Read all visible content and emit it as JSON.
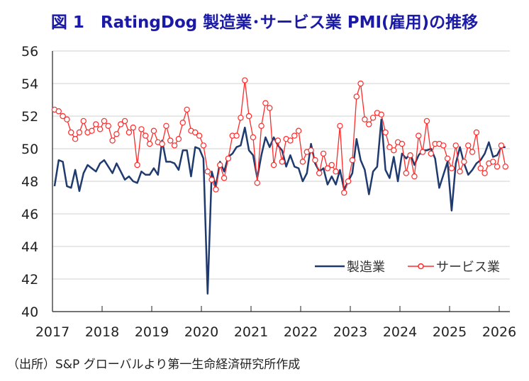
{
  "title": "図 1　RatingDog 製造業･サービス業 PMI(雇用)の推移",
  "source": "（出所）S&P グローバルより第一生命経済研究所作成",
  "chart_data": {
    "type": "line",
    "title": "図 1　RatingDog 製造業･サービス業 PMI(雇用)の推移",
    "xlabel": "",
    "ylabel": "",
    "ylim": [
      40,
      56
    ],
    "yticks": [
      "40",
      "42",
      "44",
      "46",
      "48",
      "50",
      "52",
      "54",
      "56"
    ],
    "xlim": [
      2017,
      2026.2
    ],
    "xticks": [
      "2017",
      "2018",
      "2019",
      "2020",
      "2021",
      "2022",
      "2023",
      "2024",
      "2025",
      "2026"
    ],
    "grid": "horizontal",
    "legend_position": "bottom-right",
    "x_start": "2017-01",
    "x_frequency": "monthly",
    "series": [
      {
        "name": "製造業",
        "color": "#1f3a6e",
        "marker": "none",
        "values": [
          47.7,
          49.3,
          49.2,
          47.7,
          47.6,
          48.7,
          47.4,
          48.5,
          49.0,
          48.8,
          48.6,
          49.1,
          49.3,
          48.9,
          48.5,
          49.1,
          48.6,
          48.1,
          48.3,
          48.0,
          47.9,
          48.6,
          48.4,
          48.4,
          48.8,
          48.4,
          50.5,
          49.2,
          49.2,
          49.1,
          48.7,
          49.9,
          49.9,
          48.3,
          50.1,
          50.0,
          49.4,
          41.1,
          48.6,
          47.7,
          49.2,
          48.6,
          49.5,
          49.7,
          50.1,
          50.2,
          51.3,
          49.9,
          49.6,
          48.2,
          49.6,
          50.7,
          50.1,
          50.7,
          50.2,
          49.9,
          48.9,
          49.6,
          48.9,
          48.8,
          48.0,
          48.5,
          50.3,
          49.1,
          48.6,
          48.8,
          47.8,
          48.3,
          47.8,
          48.7,
          47.5,
          48.0,
          48.5,
          50.6,
          49.3,
          48.7,
          47.2,
          48.6,
          48.9,
          51.8,
          48.7,
          48.2,
          49.5,
          48.0,
          49.7,
          49.4,
          49.7,
          49.0,
          49.6,
          49.9,
          49.9,
          50.0,
          49.4,
          47.6,
          48.4,
          49.2,
          46.2,
          49.1,
          50.1,
          49.1,
          48.4,
          48.7,
          49.1,
          49.3,
          49.7,
          50.4,
          49.5,
          49.6,
          50.1,
          50.1
        ]
      },
      {
        "name": "サービス業",
        "color": "#ff2a2a",
        "marker": "circle",
        "values": [
          52.4,
          52.3,
          52.0,
          51.8,
          51.0,
          50.6,
          51.0,
          51.7,
          51.0,
          51.1,
          51.5,
          51.2,
          51.7,
          51.4,
          50.5,
          50.9,
          51.5,
          51.7,
          51.0,
          51.3,
          49.0,
          51.2,
          50.8,
          50.3,
          51.1,
          50.4,
          50.3,
          51.4,
          50.5,
          50.2,
          50.6,
          51.6,
          52.4,
          51.1,
          51.0,
          50.8,
          50.2,
          48.6,
          48.1,
          47.5,
          49.0,
          48.2,
          49.4,
          50.8,
          50.8,
          51.9,
          54.2,
          52.0,
          50.7,
          47.9,
          51.4,
          52.8,
          52.5,
          49.0,
          50.5,
          49.2,
          50.6,
          50.5,
          50.8,
          51.1,
          49.2,
          49.8,
          49.9,
          49.3,
          48.5,
          49.7,
          48.8,
          49.0,
          48.6,
          51.4,
          47.3,
          48.0,
          49.3,
          53.2,
          54.0,
          51.8,
          51.5,
          51.9,
          52.2,
          52.1,
          51.0,
          50.1,
          49.9,
          50.4,
          50.3,
          48.5,
          49.6,
          48.3,
          50.8,
          49.8,
          51.7,
          49.7,
          50.3,
          50.3,
          50.2,
          49.4,
          48.8,
          50.2,
          48.6,
          49.2,
          50.2,
          49.8,
          51.0,
          48.8,
          48.5,
          49.1,
          49.2,
          48.9,
          50.2,
          48.9
        ]
      }
    ]
  }
}
